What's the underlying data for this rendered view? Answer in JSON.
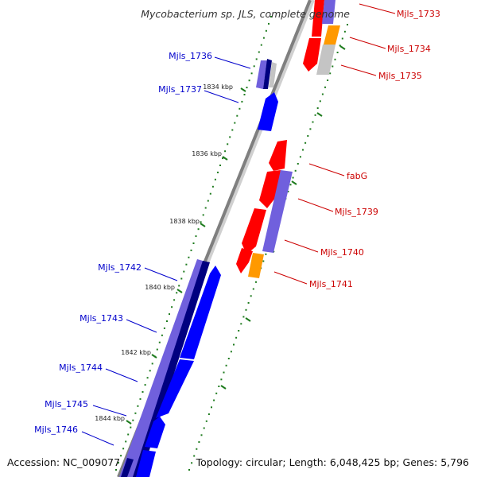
{
  "title": "Mycobacterium sp. JLS, complete genome",
  "accession": "Accession: NC_009077",
  "topology": "Topology: circular; Length: 6,048,425 bp; Genes: 5,796",
  "colors": {
    "backbone": "#7f7f7f",
    "ticks": "#1e7b1e",
    "label_blue": "#0000cc",
    "label_red": "#cc0000",
    "gene_red": "#ff0000",
    "gene_blue": "#0000ff",
    "gene_purple": "#7060dd",
    "gene_navy": "#000080",
    "gene_orange": "#ff9900",
    "gene_gray": "#b8b8b8"
  },
  "scale_labels": [
    "1834 kbp",
    "1836 kbp",
    "1838 kbp",
    "1840 kbp",
    "1842 kbp",
    "1844 kbp"
  ],
  "genes_left": [
    "Mjls_1736",
    "Mjls_1737",
    "Mjls_1742",
    "Mjls_1743",
    "Mjls_1744",
    "Mjls_1745",
    "Mjls_1746"
  ],
  "genes_right": [
    "Mjls_1733",
    "Mjls_1734",
    "Mjls_1735",
    "fabG",
    "Mjls_1739",
    "Mjls_1740",
    "Mjls_1741"
  ]
}
